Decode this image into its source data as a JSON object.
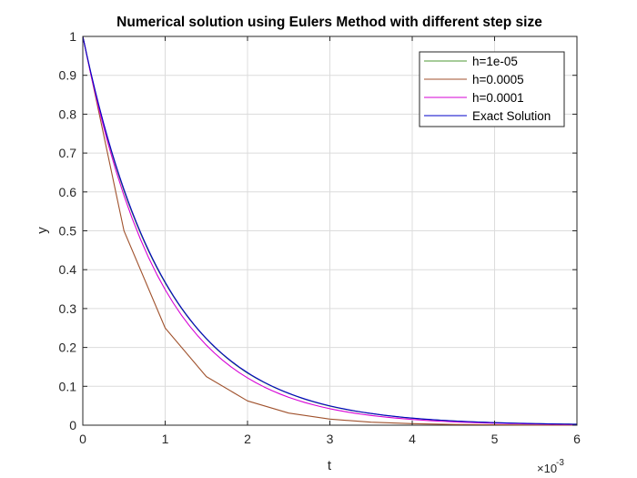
{
  "chart_data": {
    "type": "line",
    "title": "Numerical solution using Eulers Method with different step size",
    "xlabel": "t",
    "ylabel": "y",
    "x_exponent_label": "×10",
    "x_exponent": "-3",
    "xlim": [
      0,
      0.006
    ],
    "ylim": [
      0,
      1
    ],
    "xticks": [
      0,
      0.001,
      0.002,
      0.003,
      0.004,
      0.005,
      0.006
    ],
    "xtick_labels": [
      "0",
      "1",
      "2",
      "3",
      "4",
      "5",
      "6"
    ],
    "yticks": [
      0,
      0.1,
      0.2,
      0.3,
      0.4,
      0.5,
      0.6,
      0.7,
      0.8,
      0.9,
      1
    ],
    "ytick_labels": [
      "0",
      "0.1",
      "0.2",
      "0.3",
      "0.4",
      "0.5",
      "0.6",
      "0.7",
      "0.8",
      "0.9",
      "1"
    ],
    "grid": true,
    "legend_position": "top-right",
    "series": [
      {
        "name": "h=1e-05",
        "color": "#4d9a33",
        "x": [
          0,
          0.0005,
          0.001,
          0.0015,
          0.002,
          0.0025,
          0.003,
          0.0035,
          0.004,
          0.0045,
          0.005,
          0.0055,
          0.006
        ],
        "y": [
          1,
          0.6027,
          0.366,
          0.2222,
          0.134,
          0.0817,
          0.0489,
          0.03,
          0.0179,
          0.0109,
          0.0066,
          0.004,
          0.0024
        ]
      },
      {
        "name": "h=0.0005",
        "color": "#a0522d",
        "x": [
          0,
          0.0005,
          0.001,
          0.0015,
          0.002,
          0.0025,
          0.003,
          0.0035,
          0.004,
          0.0045,
          0.005,
          0.0055,
          0.006
        ],
        "y": [
          1,
          0.5,
          0.25,
          0.125,
          0.0625,
          0.03125,
          0.015625,
          0.0078125,
          0.00390625,
          0.001953125,
          0.0009765625,
          0.00048828125,
          0.000244140625
        ]
      },
      {
        "name": "h=0.0001",
        "color": "#d600d6",
        "x": [
          0,
          0.0005,
          0.001,
          0.0015,
          0.002,
          0.0025,
          0.003,
          0.0035,
          0.004,
          0.0045,
          0.005,
          0.0055,
          0.006
        ],
        "y": [
          1,
          0.5905,
          0.3487,
          0.2059,
          0.1216,
          0.0718,
          0.0424,
          0.025,
          0.0148,
          0.0087,
          0.0052,
          0.0031,
          0.0018
        ]
      },
      {
        "name": "Exact Solution",
        "color": "#0000c8",
        "x": [
          0,
          0.0005,
          0.001,
          0.0015,
          0.002,
          0.0025,
          0.003,
          0.0035,
          0.004,
          0.0045,
          0.005,
          0.0055,
          0.006
        ],
        "y": [
          1,
          0.6065,
          0.3679,
          0.2231,
          0.1353,
          0.0821,
          0.0498,
          0.0302,
          0.0183,
          0.0111,
          0.0067,
          0.0041,
          0.0025
        ]
      }
    ]
  }
}
